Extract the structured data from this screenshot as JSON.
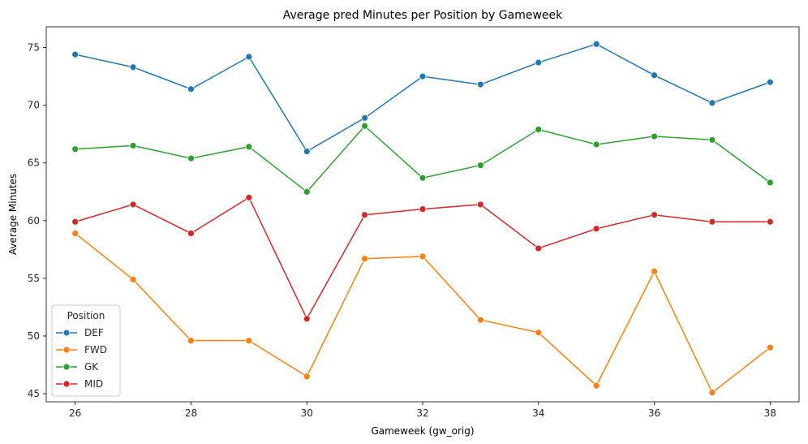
{
  "chart_data": {
    "type": "line",
    "title": "Average pred Minutes per Position by Gameweek",
    "xlabel": "Gameweek (gw_orig)",
    "ylabel": "Average Minutes",
    "x": [
      26,
      27,
      28,
      29,
      30,
      31,
      32,
      33,
      34,
      35,
      36,
      37,
      38
    ],
    "xlim": [
      25.5,
      38.5
    ],
    "ylim": [
      44.3,
      76.8
    ],
    "xticks": [
      26,
      28,
      30,
      32,
      34,
      36,
      38
    ],
    "yticks": [
      45,
      50,
      55,
      60,
      65,
      70,
      75
    ],
    "grid": false,
    "legend": {
      "title": "Position",
      "placement": "bottom-left"
    },
    "series": [
      {
        "name": "DEF",
        "color": "#1f77b4",
        "values": [
          74.4,
          73.3,
          71.4,
          74.2,
          66.0,
          68.9,
          72.5,
          71.8,
          73.7,
          75.3,
          72.6,
          70.2,
          72.0
        ]
      },
      {
        "name": "FWD",
        "color": "#ff7f0e",
        "values": [
          58.9,
          54.9,
          49.6,
          49.6,
          46.5,
          56.7,
          56.9,
          51.4,
          50.3,
          45.7,
          55.6,
          45.1,
          49.0
        ]
      },
      {
        "name": "GK",
        "color": "#2ca02c",
        "values": [
          66.2,
          66.5,
          65.4,
          66.4,
          62.5,
          68.2,
          63.7,
          64.8,
          67.9,
          66.6,
          67.3,
          67.0,
          63.3
        ]
      },
      {
        "name": "MID",
        "color": "#d62728",
        "values": [
          59.9,
          61.4,
          58.9,
          62.0,
          51.5,
          60.5,
          61.0,
          61.4,
          57.6,
          59.3,
          60.5,
          59.9,
          59.9
        ]
      }
    ]
  }
}
